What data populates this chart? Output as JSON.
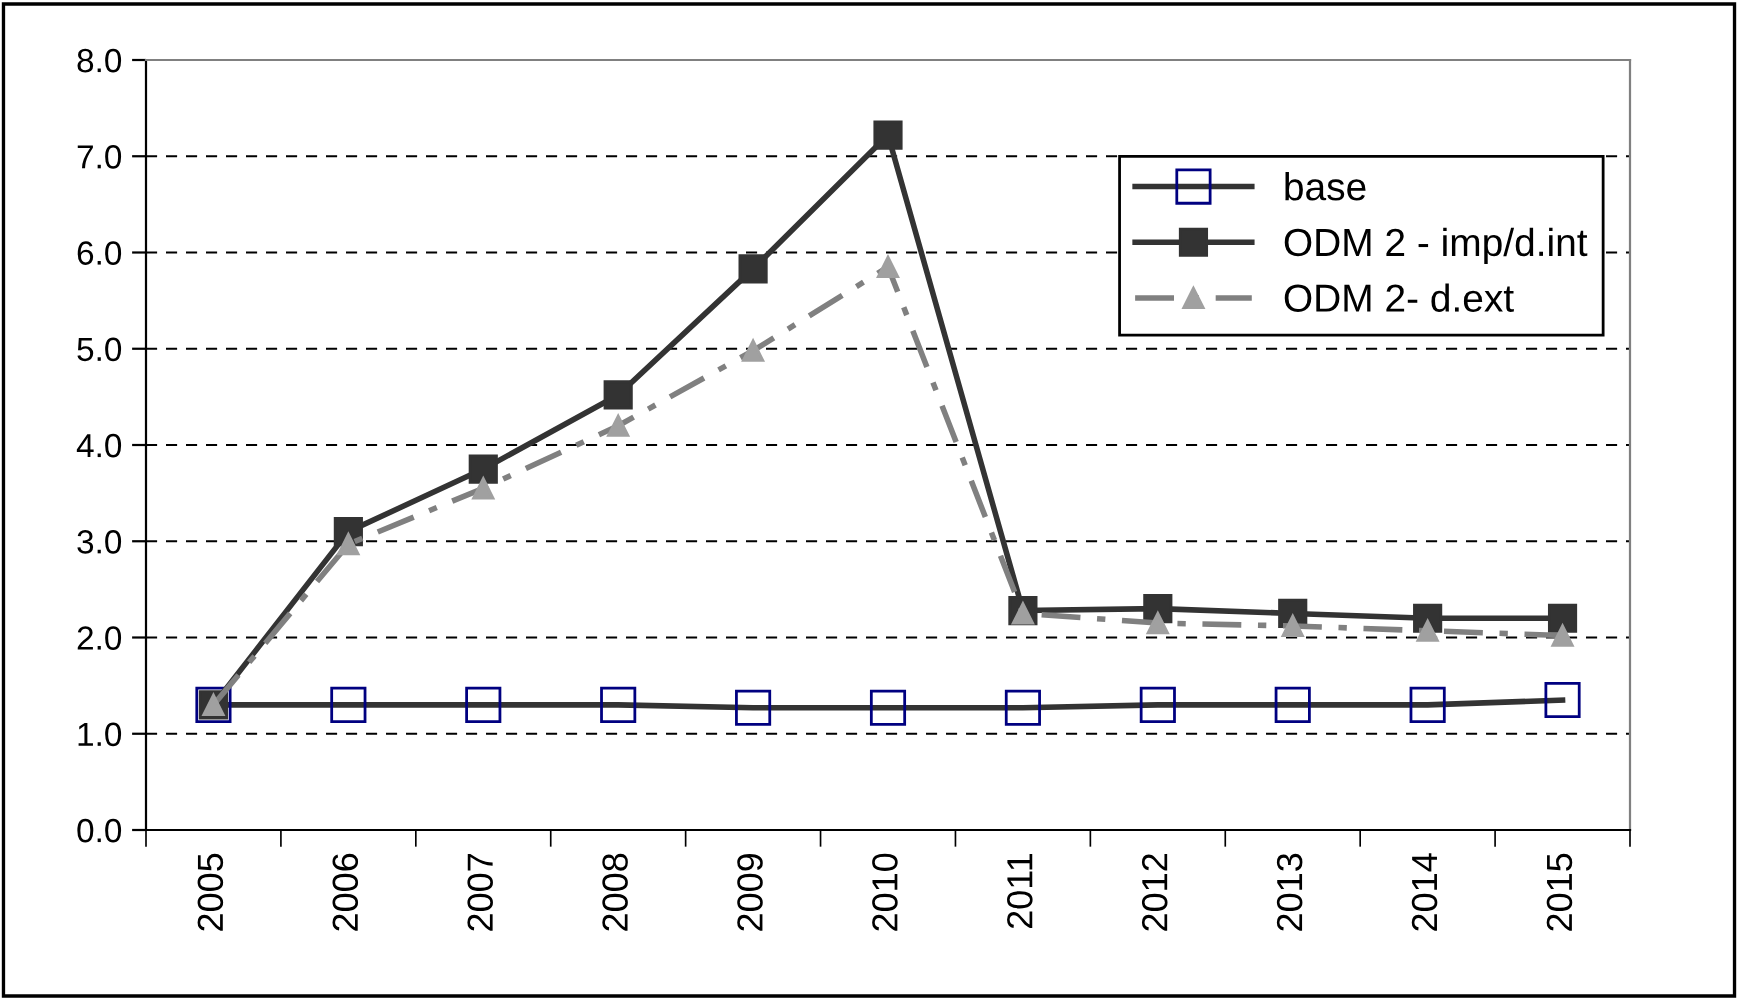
{
  "chart_data": {
    "type": "line",
    "categories": [
      "2005",
      "2006",
      "2007",
      "2008",
      "2009",
      "2010",
      "2011",
      "2012",
      "2013",
      "2014",
      "2015"
    ],
    "series": [
      {
        "name": "base",
        "color": "#000080",
        "marker": "square",
        "line_style": "solid",
        "values": [
          1.3,
          1.3,
          1.3,
          1.3,
          1.27,
          1.27,
          1.27,
          1.3,
          1.3,
          1.3,
          1.35
        ]
      },
      {
        "name": "ODM 2 - imp/d.int",
        "color": "#333333",
        "marker": "square",
        "line_style": "solid",
        "values": [
          1.3,
          3.1,
          3.75,
          4.52,
          5.83,
          7.22,
          2.28,
          2.3,
          2.25,
          2.2,
          2.2
        ]
      },
      {
        "name": "ODM 2- d.ext",
        "color": "#a0a0a0",
        "marker": "triangle",
        "line_style": "dashed",
        "values": [
          1.3,
          2.97,
          3.55,
          4.2,
          4.98,
          5.85,
          2.25,
          2.15,
          2.12,
          2.07,
          2.02
        ]
      }
    ],
    "ylim": [
      0,
      8
    ],
    "yticks": [
      {
        "value": 0,
        "label": "0.0"
      },
      {
        "value": 1,
        "label": "1.0"
      },
      {
        "value": 2,
        "label": "2.0"
      },
      {
        "value": 3,
        "label": "3.0"
      },
      {
        "value": 4,
        "label": "4.0"
      },
      {
        "value": 5,
        "label": "5.0"
      },
      {
        "value": 6,
        "label": "6.0"
      },
      {
        "value": 7,
        "label": "7.0"
      },
      {
        "value": 8,
        "label": "8.0"
      }
    ],
    "grid": "y",
    "legend": "top right"
  }
}
